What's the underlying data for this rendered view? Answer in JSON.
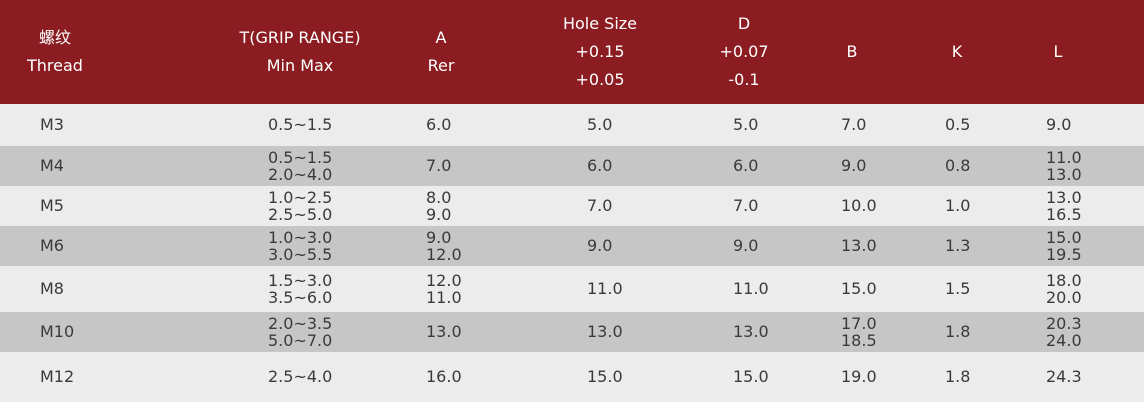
{
  "header": {
    "thread_zh": "螺纹",
    "thread_en": "Thread",
    "t_line1": "T(GRIP RANGE)",
    "t_line2": "Min Max",
    "a_line1": "A",
    "a_line2": "Rer",
    "hole_line1": "Hole Size",
    "hole_line2": "+0.15",
    "hole_line3": "+0.05",
    "d_line1": "D",
    "d_line2": "+0.07",
    "d_line3": "-0.1",
    "b": "B",
    "k": "K",
    "l": "L"
  },
  "rows": [
    {
      "thread": "M3",
      "t": [
        "0.5~1.5"
      ],
      "a": [
        "6.0"
      ],
      "hole": "5.0",
      "d": "5.0",
      "b": [
        "7.0"
      ],
      "k": "0.5",
      "l": [
        "9.0"
      ]
    },
    {
      "thread": "M4",
      "t": [
        "0.5~1.5",
        "2.0~4.0"
      ],
      "a": [
        "7.0"
      ],
      "hole": "6.0",
      "d": "6.0",
      "b": [
        "9.0"
      ],
      "k": "0.8",
      "l": [
        "11.0",
        "13.0"
      ]
    },
    {
      "thread": "M5",
      "t": [
        "1.0~2.5",
        "2.5~5.0"
      ],
      "a": [
        "8.0",
        "9.0"
      ],
      "hole": "7.0",
      "d": "7.0",
      "b": [
        "10.0"
      ],
      "k": "1.0",
      "l": [
        "13.0",
        "16.5"
      ]
    },
    {
      "thread": "M6",
      "t": [
        "1.0~3.0",
        "3.0~5.5"
      ],
      "a": [
        "9.0",
        "12.0"
      ],
      "hole": "9.0",
      "d": "9.0",
      "b": [
        "13.0"
      ],
      "k": "1.3",
      "l": [
        "15.0",
        "19.5"
      ]
    },
    {
      "thread": "M8",
      "t": [
        "1.5~3.0",
        "3.5~6.0"
      ],
      "a": [
        "12.0",
        "11.0"
      ],
      "hole": "11.0",
      "d": "11.0",
      "b": [
        "15.0"
      ],
      "k": "1.5",
      "l": [
        "18.0",
        "20.0"
      ]
    },
    {
      "thread": "M10",
      "t": [
        "2.0~3.5",
        "5.0~7.0"
      ],
      "a": [
        "13.0"
      ],
      "hole": "13.0",
      "d": "13.0",
      "b": [
        "17.0",
        "18.5"
      ],
      "k": "1.8",
      "l": [
        "20.3",
        "24.0"
      ]
    },
    {
      "thread": "M12",
      "t": [
        "2.5~4.0"
      ],
      "a": [
        "16.0"
      ],
      "hole": "15.0",
      "d": "15.0",
      "b": [
        "19.0"
      ],
      "k": "1.8",
      "l": [
        "24.3"
      ]
    }
  ],
  "colors": {
    "header_bg": "#8b1d22",
    "row_light": "#ececec",
    "row_dark": "#c6c6c6",
    "text": "#3a3a3a"
  }
}
